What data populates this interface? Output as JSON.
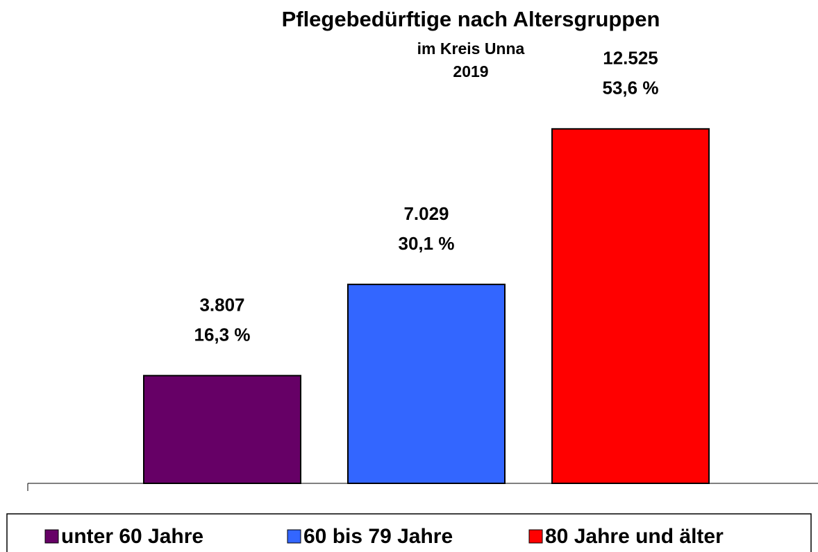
{
  "chart_data": {
    "type": "bar",
    "title": "Pflegebedürftige nach Altersgruppen",
    "subtitle": [
      "im Kreis Unna",
      "2019"
    ],
    "ylim": [
      0,
      16000
    ],
    "series": [
      {
        "name": "unter 60 Jahre",
        "color": "#660066",
        "values": [
          3807
        ],
        "value_labels": [
          "3.807"
        ],
        "percents": [
          16.3
        ],
        "percent_labels": [
          "16,3 %"
        ]
      },
      {
        "name": "60 bis 79 Jahre",
        "color": "#3366ff",
        "values": [
          7029
        ],
        "value_labels": [
          "7.029"
        ],
        "percents": [
          30.1
        ],
        "percent_labels": [
          "30,1 %"
        ]
      },
      {
        "name": "80 Jahre und älter",
        "color": "#ff0000",
        "values": [
          12525
        ],
        "value_labels": [
          "12.525"
        ],
        "percents": [
          53.6
        ],
        "percent_labels": [
          "53,6 %"
        ]
      }
    ]
  }
}
